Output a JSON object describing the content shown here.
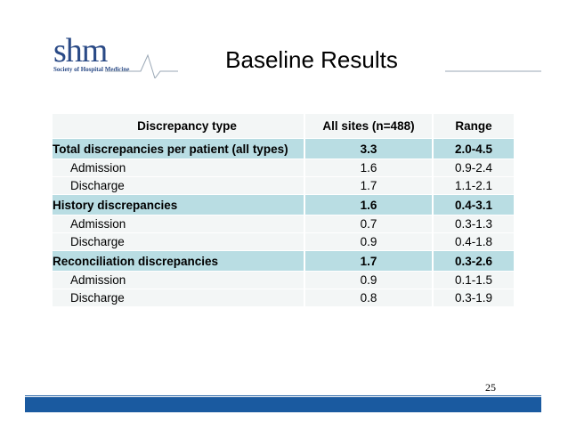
{
  "logo": {
    "mark": "shm",
    "subtitle": "Society of Hospital Medicine"
  },
  "slide": {
    "title": "Baseline Results",
    "page_number": "25"
  },
  "table": {
    "headers": [
      "Discrepancy type",
      "All sites (n=488)",
      "Range"
    ],
    "groups": [
      {
        "label": "Total discrepancies per patient (all types)",
        "all_sites": "3.3",
        "range": "2.0-4.5",
        "rows": [
          {
            "label": "Admission",
            "all_sites": "1.6",
            "range": "0.9-2.4"
          },
          {
            "label": "Discharge",
            "all_sites": "1.7",
            "range": "1.1-2.1"
          }
        ]
      },
      {
        "label": "History discrepancies",
        "all_sites": "1.6",
        "range": "0.4-3.1",
        "rows": [
          {
            "label": "Admission",
            "all_sites": "0.7",
            "range": "0.3-1.3"
          },
          {
            "label": "Discharge",
            "all_sites": "0.9",
            "range": "0.4-1.8"
          }
        ]
      },
      {
        "label": "Reconciliation discrepancies",
        "all_sites": "1.7",
        "range": "0.3-2.6",
        "rows": [
          {
            "label": "Admission",
            "all_sites": "0.9",
            "range": "0.1-1.5"
          },
          {
            "label": "Discharge",
            "all_sites": "0.8",
            "range": "0.3-1.9"
          }
        ]
      }
    ]
  },
  "colors": {
    "brand_blue": "#2a4a86",
    "group_row": "#b9dde3",
    "sub_row": "#f3f6f6",
    "footer_bar": "#1a5aa0"
  }
}
